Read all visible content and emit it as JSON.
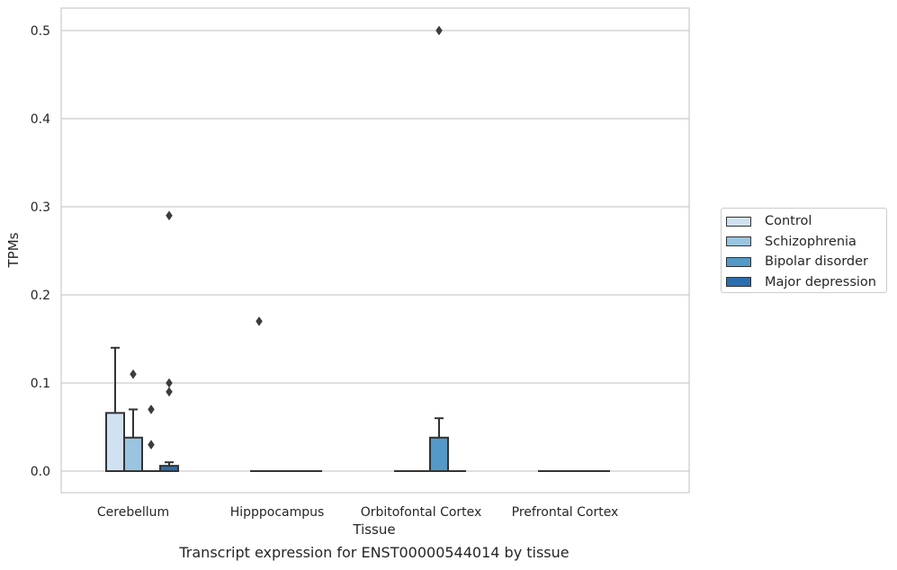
{
  "chart_data": {
    "type": "box",
    "title": "Transcript expression for ENST00000544014 by tissue",
    "xlabel": "Tissue",
    "ylabel": "TPMs",
    "ylim": [
      -0.025,
      0.525
    ],
    "yticks": [
      0.0,
      0.1,
      0.2,
      0.3,
      0.4,
      0.5
    ],
    "ytick_labels": [
      "0.0",
      "0.1",
      "0.2",
      "0.3",
      "0.4",
      "0.5"
    ],
    "categories": [
      "Cerebellum",
      "Hipppocampus",
      "Orbitofontal Cortex",
      "Prefrontal Cortex"
    ],
    "grid": "horizontal",
    "legend_position": "right",
    "series": [
      {
        "name": "Control",
        "color": "#d0e1f2",
        "boxes": [
          {
            "q1": 0.0,
            "median": 0.0,
            "q3": 0.066,
            "whisker_low": 0.0,
            "whisker_high": 0.14,
            "outliers": []
          },
          {
            "q1": 0.0,
            "median": 0.0,
            "q3": 0.0,
            "whisker_low": 0.0,
            "whisker_high": 0.0,
            "outliers": [
              0.17
            ]
          },
          {
            "q1": 0.0,
            "median": 0.0,
            "q3": 0.0,
            "whisker_low": 0.0,
            "whisker_high": 0.0,
            "outliers": []
          },
          {
            "q1": 0.0,
            "median": 0.0,
            "q3": 0.0,
            "whisker_low": 0.0,
            "whisker_high": 0.0,
            "outliers": []
          }
        ]
      },
      {
        "name": "Schizophrenia",
        "color": "#9ac4df",
        "boxes": [
          {
            "q1": 0.0,
            "median": 0.0,
            "q3": 0.038,
            "whisker_low": 0.0,
            "whisker_high": 0.07,
            "outliers": [
              0.11
            ]
          },
          {
            "q1": 0.0,
            "median": 0.0,
            "q3": 0.0,
            "whisker_low": 0.0,
            "whisker_high": 0.0,
            "outliers": []
          },
          {
            "q1": 0.0,
            "median": 0.0,
            "q3": 0.0,
            "whisker_low": 0.0,
            "whisker_high": 0.0,
            "outliers": []
          },
          {
            "q1": 0.0,
            "median": 0.0,
            "q3": 0.0,
            "whisker_low": 0.0,
            "whisker_high": 0.0,
            "outliers": []
          }
        ]
      },
      {
        "name": "Bipolar disorder",
        "color": "#5499c7",
        "boxes": [
          {
            "q1": 0.0,
            "median": 0.0,
            "q3": 0.0,
            "whisker_low": 0.0,
            "whisker_high": 0.0,
            "outliers": [
              0.03,
              0.07
            ]
          },
          {
            "q1": 0.0,
            "median": 0.0,
            "q3": 0.0,
            "whisker_low": 0.0,
            "whisker_high": 0.0,
            "outliers": []
          },
          {
            "q1": 0.0,
            "median": 0.0,
            "q3": 0.038,
            "whisker_low": 0.0,
            "whisker_high": 0.06,
            "outliers": [
              0.5
            ]
          },
          {
            "q1": 0.0,
            "median": 0.0,
            "q3": 0.0,
            "whisker_low": 0.0,
            "whisker_high": 0.0,
            "outliers": []
          }
        ]
      },
      {
        "name": "Major depression",
        "color": "#2a6eae",
        "boxes": [
          {
            "q1": 0.0,
            "median": 0.0,
            "q3": 0.006,
            "whisker_low": 0.0,
            "whisker_high": 0.01,
            "outliers": [
              0.09,
              0.1,
              0.29
            ]
          },
          {
            "q1": 0.0,
            "median": 0.0,
            "q3": 0.0,
            "whisker_low": 0.0,
            "whisker_high": 0.0,
            "outliers": []
          },
          {
            "q1": 0.0,
            "median": 0.0,
            "q3": 0.0,
            "whisker_low": 0.0,
            "whisker_high": 0.0,
            "outliers": []
          },
          {
            "q1": 0.0,
            "median": 0.0,
            "q3": 0.0,
            "whisker_low": 0.0,
            "whisker_high": 0.0,
            "outliers": []
          }
        ]
      }
    ]
  }
}
